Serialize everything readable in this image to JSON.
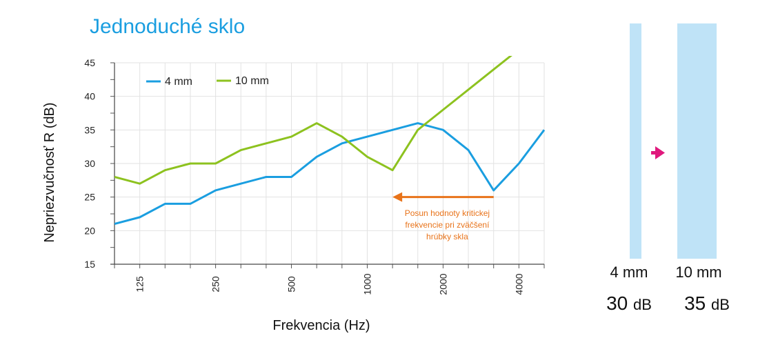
{
  "title": "Jednoduché sklo",
  "chart_data": {
    "type": "line",
    "xlabel": "Frekvencia (Hz)",
    "ylabel": "Nepriezvučnosť R (dB)",
    "ylim": [
      15,
      45
    ],
    "yticks": [
      15,
      20,
      25,
      30,
      35,
      40,
      45
    ],
    "x_tick_labels": [
      "125",
      "250",
      "500",
      "1000",
      "2000",
      "4000"
    ],
    "x_tick_indices": [
      1,
      4,
      7,
      10,
      13,
      16
    ],
    "grid": true,
    "legend_position": "top-left",
    "series": [
      {
        "name": "4 mm",
        "color": "#1a9ee0",
        "values": [
          21,
          22,
          24,
          24,
          26,
          27,
          28,
          28,
          31,
          33,
          34,
          35,
          36,
          35,
          32,
          26,
          30,
          35
        ]
      },
      {
        "name": "10 mm",
        "color": "#8dc21f",
        "values": [
          28,
          27,
          29,
          30,
          30,
          32,
          33,
          34,
          36,
          34,
          31,
          29,
          35,
          38,
          41,
          44,
          47,
          null
        ]
      }
    ],
    "annotation": {
      "text_lines": [
        "Posun hodnoty kritickej",
        "frekvencie pri zväčšení",
        "hrúbky skla"
      ],
      "color": "#e8731a",
      "arrow_y": 25,
      "arrow_from_index": 15,
      "arrow_to_index": 11
    }
  },
  "panes": {
    "color": "#bfe3f7",
    "arrow_color": "#e0197d",
    "items": [
      {
        "label": "4 mm",
        "value": "30",
        "unit": "dB"
      },
      {
        "label": "10 mm",
        "value": "35",
        "unit": "dB"
      }
    ]
  }
}
